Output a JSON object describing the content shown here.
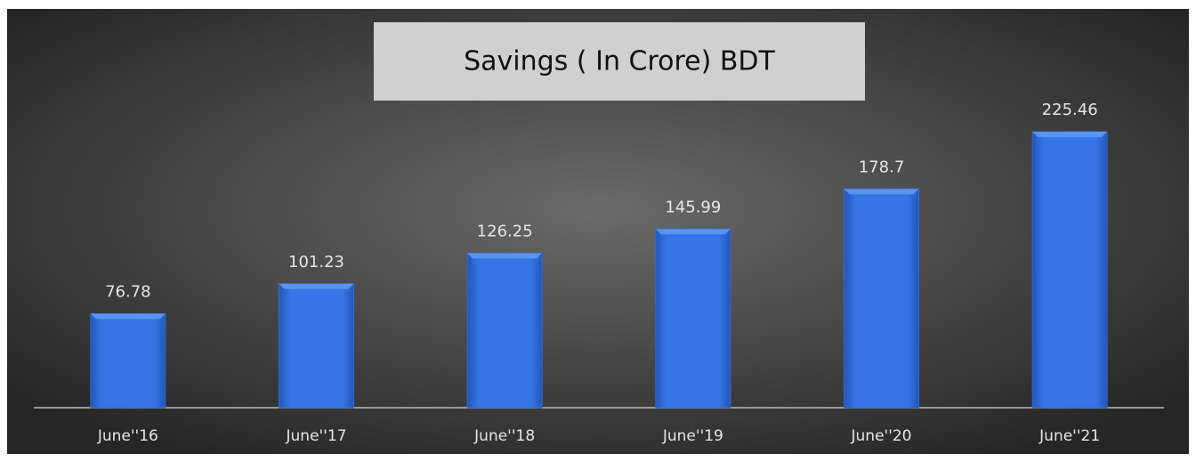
{
  "chart_data": {
    "type": "bar",
    "title": "Savings ( In Crore) BDT",
    "categories": [
      "June''16",
      "June''17",
      "June''18",
      "June''19",
      "June''20",
      "June''21"
    ],
    "values": [
      76.78,
      101.23,
      126.25,
      145.99,
      178.7,
      225.46
    ],
    "color": "#2f6bd8"
  }
}
